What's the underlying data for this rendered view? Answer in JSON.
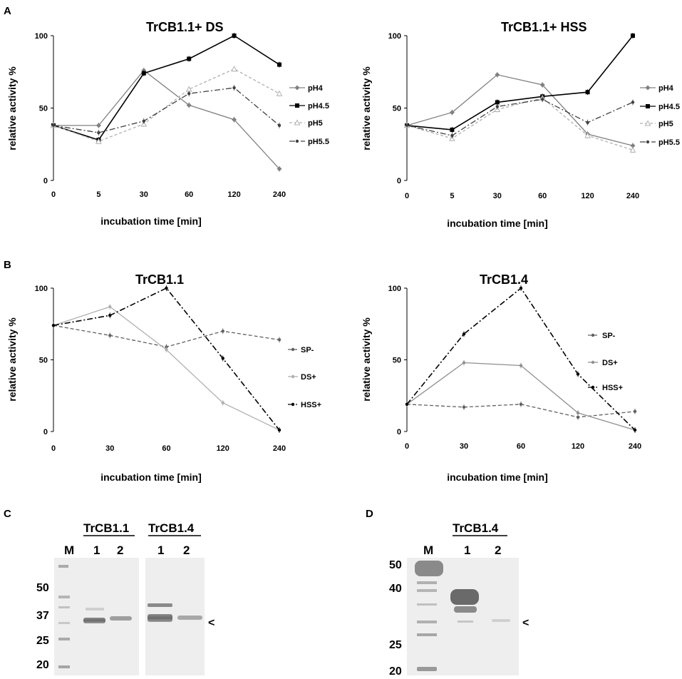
{
  "panel_labels": {
    "A": "A",
    "B": "B",
    "C": "C",
    "D": "D"
  },
  "chart_data": [
    {
      "type": "line",
      "title": "TrCB1.1+ DS",
      "xlabel": "incubation time [min]",
      "ylabel": "relative activity %",
      "categories": [
        "0",
        "5",
        "30",
        "60",
        "120",
        "240"
      ],
      "ylim": [
        0,
        100
      ],
      "yticks": [
        0,
        50,
        100
      ],
      "series": [
        {
          "name": "pH4",
          "values": [
            38,
            38,
            76,
            52,
            42,
            8
          ],
          "color": "#808080",
          "marker": "diamond",
          "dash": ""
        },
        {
          "name": "pH4.5",
          "values": [
            38,
            28,
            74,
            84,
            100,
            80
          ],
          "color": "#000000",
          "marker": "square",
          "dash": ""
        },
        {
          "name": "pH5",
          "values": [
            38,
            27,
            39,
            63,
            77,
            60
          ],
          "color": "#b0b0b0",
          "marker": "triangle",
          "dash": "4,3"
        },
        {
          "name": "pH5.5",
          "values": [
            38,
            33,
            41,
            60,
            64,
            38
          ],
          "color": "#404040",
          "marker": "dot",
          "dash": "8,3,2,3"
        }
      ]
    },
    {
      "type": "line",
      "title": "TrCB1.1+ HSS",
      "xlabel": "incubation time [min]",
      "ylabel": "relative activity %",
      "categories": [
        "0",
        "5",
        "30",
        "60",
        "120",
        "240"
      ],
      "ylim": [
        0,
        100
      ],
      "yticks": [
        0,
        50,
        100
      ],
      "series": [
        {
          "name": "pH4",
          "values": [
            38,
            47,
            73,
            66,
            32,
            24
          ],
          "color": "#808080",
          "marker": "diamond",
          "dash": ""
        },
        {
          "name": "pH4.5",
          "values": [
            38,
            35,
            54,
            58,
            61,
            100
          ],
          "color": "#000000",
          "marker": "square",
          "dash": ""
        },
        {
          "name": "pH5",
          "values": [
            38,
            29,
            49,
            57,
            31,
            21
          ],
          "color": "#b0b0b0",
          "marker": "triangle",
          "dash": "4,3"
        },
        {
          "name": "pH5.5",
          "values": [
            38,
            31,
            51,
            56,
            40,
            54
          ],
          "color": "#404040",
          "marker": "dot",
          "dash": "8,3,2,3"
        }
      ]
    },
    {
      "type": "line",
      "title": "TrCB1.1",
      "xlabel": "incubation time [min]",
      "ylabel": "relative activity %",
      "categories": [
        "0",
        "30",
        "60",
        "120",
        "240"
      ],
      "ylim": [
        0,
        100
      ],
      "yticks": [
        0,
        50,
        100
      ],
      "series": [
        {
          "name": "SP-",
          "values": [
            74,
            67,
            59,
            70,
            64
          ],
          "color": "#606060",
          "marker": "dot",
          "dash": "5,3"
        },
        {
          "name": "DS+",
          "values": [
            74,
            87,
            57,
            20,
            1
          ],
          "color": "#b0b0b0",
          "marker": "dot",
          "dash": ""
        },
        {
          "name": "HSS+",
          "values": [
            74,
            81,
            100,
            51,
            1
          ],
          "color": "#000000",
          "marker": "dot",
          "dash": "8,3,2,3"
        }
      ]
    },
    {
      "type": "line",
      "title": "TrCB1.4",
      "xlabel": "incubation time [min]",
      "ylabel": "relative activity %",
      "categories": [
        "0",
        "30",
        "60",
        "120",
        "240"
      ],
      "ylim": [
        0,
        100
      ],
      "yticks": [
        0,
        50,
        100
      ],
      "series": [
        {
          "name": "SP-",
          "values": [
            19,
            17,
            19,
            10,
            14
          ],
          "color": "#606060",
          "marker": "dot",
          "dash": "5,3"
        },
        {
          "name": "DS+",
          "values": [
            19,
            48,
            46,
            13,
            1
          ],
          "color": "#909090",
          "marker": "dot",
          "dash": ""
        },
        {
          "name": "HSS+",
          "values": [
            19,
            68,
            100,
            40,
            1
          ],
          "color": "#000000",
          "marker": "dot",
          "dash": "8,3,2,3"
        }
      ]
    }
  ],
  "gels": {
    "C": {
      "group1": "TrCB1.1",
      "group2": "TrCB1.4",
      "lane_m": "M",
      "lane_1a": "1",
      "lane_2a": "2",
      "lane_1b": "1",
      "lane_2b": "2",
      "markers": [
        "50",
        "37",
        "25",
        "20"
      ],
      "arrow": "<"
    },
    "D": {
      "group": "TrCB1.4",
      "lane_m": "M",
      "lane_1": "1",
      "lane_2": "2",
      "markers": [
        "50",
        "40",
        "25",
        "20"
      ],
      "arrow": "<"
    }
  }
}
